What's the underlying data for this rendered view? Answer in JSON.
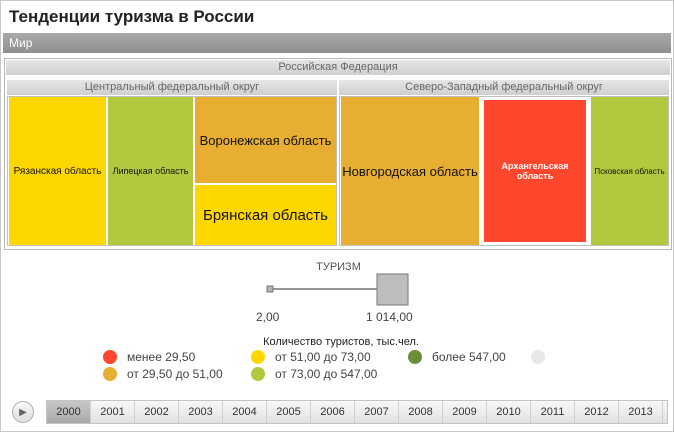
{
  "app_title": "Тенденции туризма в России",
  "world_label": "Мир",
  "treemap": {
    "country": "Российская Федерация",
    "districts": [
      {
        "name": "Центральный федеральный округ",
        "regions": [
          {
            "name": "Рязанская область",
            "color": "#FFD700"
          },
          {
            "name": "Липецкая область",
            "color": "#B4C83F"
          },
          {
            "name": "Воронежская область",
            "color": "#E8AE32"
          },
          {
            "name": "Брянская область",
            "color": "#FFD700"
          }
        ]
      },
      {
        "name": "Северо-Западный федеральный округ",
        "regions": [
          {
            "name": "Новгородская область",
            "color": "#E8AE32"
          },
          {
            "name": "Архангельская область",
            "color": "#FF472D"
          },
          {
            "name": "Псковская область",
            "color": "#B4C83F"
          }
        ]
      }
    ]
  },
  "size_scale": {
    "title": "ТУРИЗМ",
    "min_label": "2,00",
    "max_label": "1 014,00"
  },
  "legend": {
    "title": "Количество туристов, тыс.чел.",
    "items": [
      {
        "label": "менее 29,50",
        "color": "#FF472D"
      },
      {
        "label": "от 29,50 до 51,00",
        "color": "#E8AE32"
      },
      {
        "label": "от 51,00 до 73,00",
        "color": "#FFD700"
      },
      {
        "label": "от 73,00 до 547,00",
        "color": "#B4C83F"
      },
      {
        "label": "более 547,00",
        "color": "#6B8E3A"
      },
      {
        "label": "",
        "color": "#E8E8E8"
      }
    ]
  },
  "timeline": {
    "play_icon": "play-icon",
    "years": [
      "2000",
      "2001",
      "2002",
      "2003",
      "2004",
      "2005",
      "2006",
      "2007",
      "2008",
      "2009",
      "2010",
      "2011",
      "2012",
      "2013"
    ],
    "selected": "2000"
  }
}
